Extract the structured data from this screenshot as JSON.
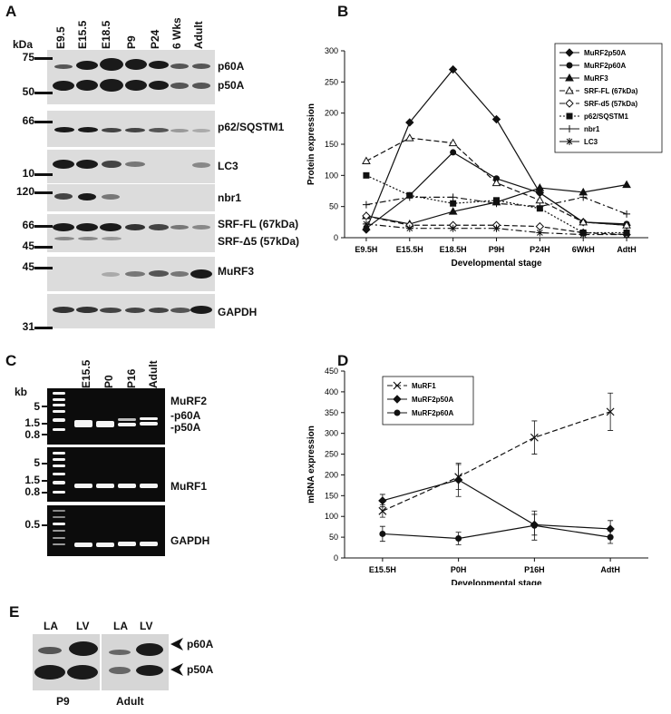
{
  "panels": {
    "A": "A",
    "B": "B",
    "C": "C",
    "D": "D",
    "E": "E"
  },
  "panelA": {
    "lanes": [
      "E9.5",
      "E15.5",
      "E18.5",
      "P9",
      "P24",
      "6 Wks",
      "Adult"
    ],
    "mw_unit": "kDa",
    "mw_markers": [
      "75",
      "50",
      "66",
      "10",
      "120",
      "66",
      "45",
      "45",
      "31"
    ],
    "bands": [
      "p60A",
      "p50A",
      "p62/SQSTM1",
      "LC3",
      "nbr1",
      "SRF-FL (67kDa)",
      "SRF-Δ5 (57kDa)",
      "MuRF3",
      "GAPDH"
    ]
  },
  "panelC": {
    "lanes": [
      "E15.5",
      "P0",
      "P16",
      "Adult"
    ],
    "size_unit": "kb",
    "markers_top": [
      "5",
      "1.5",
      "0.8"
    ],
    "markers_mid": [
      "5",
      "1.5",
      "0.8"
    ],
    "markers_bot": [
      "0.5"
    ],
    "labels": {
      "murf2": "MuRF2",
      "p60a": "-p60A",
      "p50a": "-p50A",
      "murf1": "MuRF1",
      "gapdh": "GAPDH"
    }
  },
  "panelE": {
    "lanes": [
      "LA",
      "LV",
      "LA",
      "LV"
    ],
    "groups": [
      "P9",
      "Adult"
    ],
    "bands": [
      "p60A",
      "p50A"
    ]
  },
  "chart_data": [
    {
      "type": "line",
      "panel": "B",
      "categories": [
        "E9.5H",
        "E15.5H",
        "E18.5H",
        "P9H",
        "P24H",
        "6WkH",
        "AdtH"
      ],
      "xlabel": "Developmental stage",
      "ylabel": "Protein expression",
      "ylim": [
        0,
        300
      ],
      "yticks": [
        "0",
        "50",
        "100",
        "150",
        "200",
        "250",
        "300"
      ],
      "legend_position": "top-right",
      "series": [
        {
          "name": "MuRF2p50A",
          "values": [
            13,
            185,
            270,
            190,
            72,
            25,
            20
          ],
          "marker": "diamond-filled",
          "dash": "solid"
        },
        {
          "name": "MuRF2p60A",
          "values": [
            15,
            68,
            137,
            95,
            72,
            25,
            22
          ],
          "marker": "circle-filled",
          "dash": "solid"
        },
        {
          "name": "MuRF3",
          "values": [
            35,
            22,
            42,
            57,
            80,
            73,
            85
          ],
          "marker": "triangle-filled",
          "dash": "solid"
        },
        {
          "name": "SRF-FL (67kDa)",
          "values": [
            123,
            160,
            152,
            88,
            60,
            25,
            20
          ],
          "marker": "triangle-open",
          "dash": "dashed"
        },
        {
          "name": "SRF-d5 (57kDa)",
          "values": [
            35,
            20,
            20,
            20,
            18,
            8,
            5
          ],
          "marker": "diamond-open",
          "dash": "dashed"
        },
        {
          "name": "p62/SQSTM1",
          "values": [
            100,
            68,
            55,
            60,
            47,
            8,
            8
          ],
          "marker": "square-filled",
          "dash": "dotted"
        },
        {
          "name": "nbr1",
          "values": [
            53,
            65,
            65,
            55,
            50,
            65,
            38
          ],
          "marker": "plus",
          "dash": "dashdot"
        },
        {
          "name": "LC3",
          "values": [
            22,
            15,
            15,
            15,
            8,
            5,
            5
          ],
          "marker": "star",
          "dash": "dashdot"
        }
      ]
    },
    {
      "type": "line",
      "panel": "D",
      "categories": [
        "E15.5H",
        "P0H",
        "P16H",
        "AdtH"
      ],
      "xlabel": "Developmental stage",
      "ylabel": "mRNA expression",
      "ylim": [
        0,
        450
      ],
      "yticks": [
        "0",
        "50",
        "100",
        "150",
        "200",
        "250",
        "300",
        "350",
        "400",
        "450"
      ],
      "legend_position": "top-left",
      "series": [
        {
          "name": "MuRF1",
          "values": [
            113,
            195,
            290,
            352
          ],
          "errors": [
            15,
            30,
            40,
            45
          ],
          "marker": "x",
          "dash": "dashed"
        },
        {
          "name": "MuRF2p50A",
          "values": [
            138,
            188,
            80,
            70
          ],
          "errors": [
            15,
            40,
            25,
            20
          ],
          "marker": "diamond-filled",
          "dash": "solid"
        },
        {
          "name": "MuRF2p60A",
          "values": [
            58,
            47,
            78,
            50
          ],
          "errors": [
            18,
            15,
            35,
            15
          ],
          "marker": "circle-filled",
          "dash": "solid"
        }
      ]
    }
  ]
}
